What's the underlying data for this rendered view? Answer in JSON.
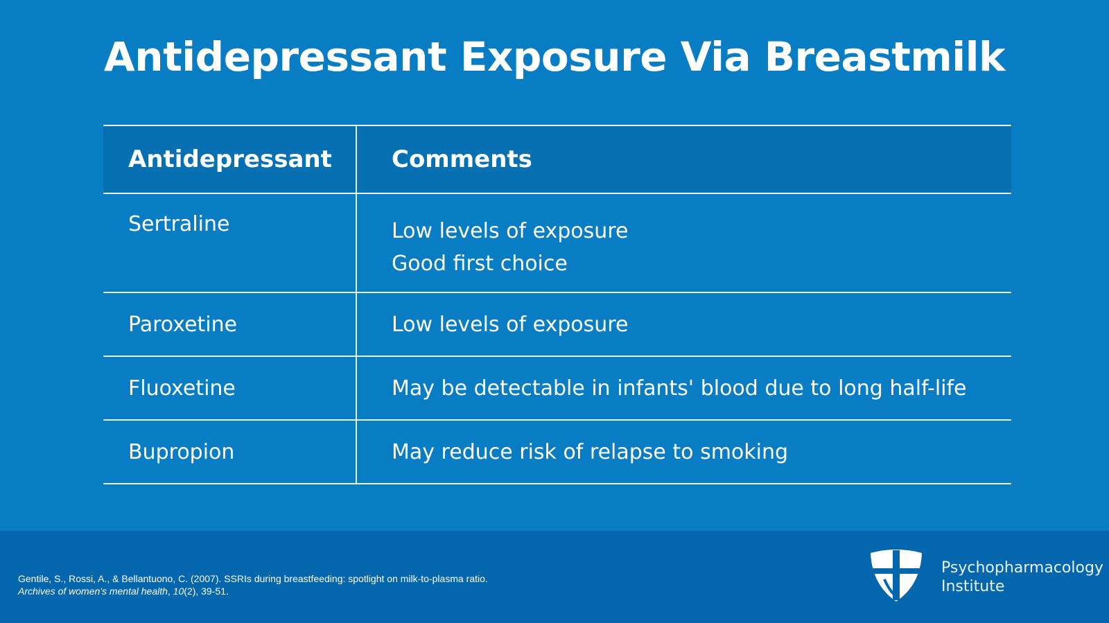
{
  "title": "Antidepressant Exposure Via Breastmilk",
  "table": {
    "headers": [
      "Antidepressant",
      "Comments"
    ],
    "rows": [
      {
        "drug": "Sertraline",
        "comments": [
          "Low levels of exposure",
          "Good first choice"
        ]
      },
      {
        "drug": "Paroxetine",
        "comments": [
          "Low levels of exposure"
        ]
      },
      {
        "drug": "Fluoxetine",
        "comments": [
          "May be detectable in infants' blood due to long half-life"
        ]
      },
      {
        "drug": "Bupropion",
        "comments": [
          "May reduce risk of relapse to smoking"
        ]
      }
    ]
  },
  "footer": {
    "citation_line1": "Gentile, S., Rossi, A., & Bellantuono, C. (2007). SSRIs during breastfeeding: spotlight on milk-to-plasma ratio.",
    "citation_journal": "Archives of women's mental health",
    "citation_volume": "10",
    "citation_issue_pages": "(2), 39-51.",
    "brand_line1": "Psychopharmacology",
    "brand_line2": "Institute",
    "logo_icon": "shield-cross-icon"
  },
  "colors": {
    "background": "#097dc3",
    "header_row": "#0670b3",
    "footer": "#0467ad",
    "text": "#ffffff"
  }
}
